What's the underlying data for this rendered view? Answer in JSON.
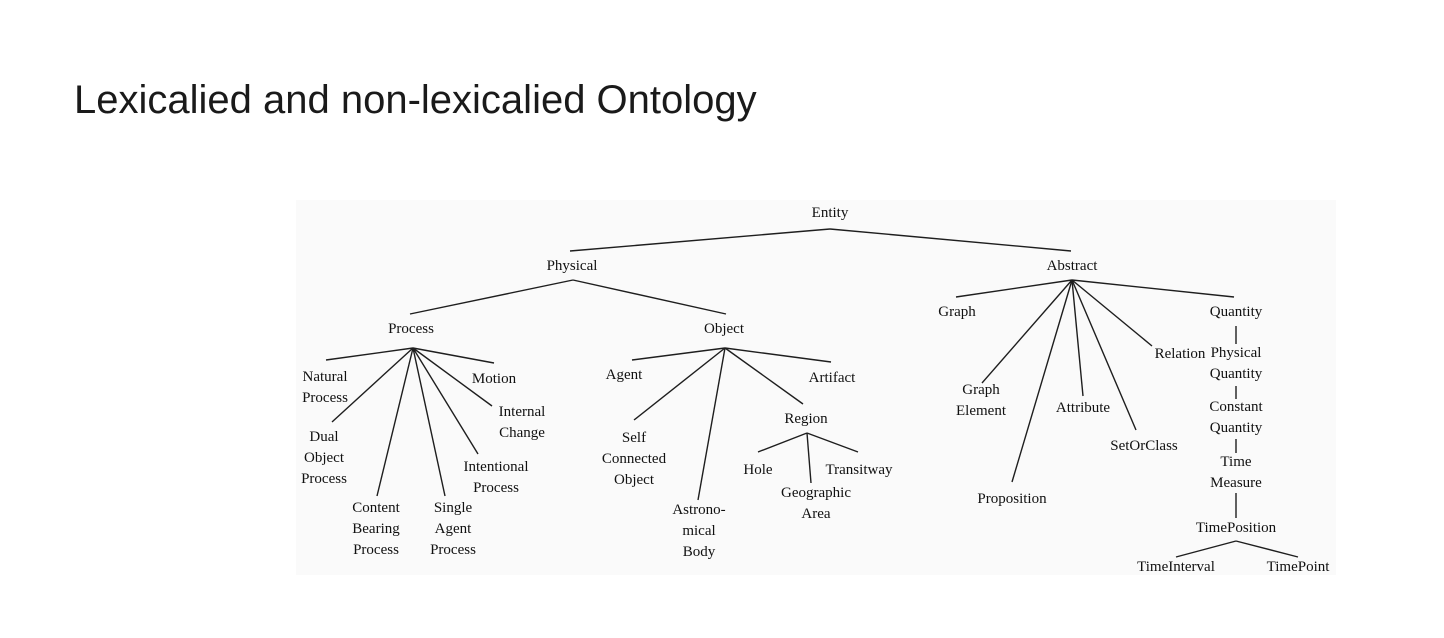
{
  "slide": {
    "title": "Lexicalied and non-lexicalied Ontology"
  },
  "ontology": {
    "entity": "Entity",
    "physical": "Physical",
    "abstract": "Abstract",
    "process": "Process",
    "object": "Object",
    "natural_process": "Natural\nProcess",
    "motion": "Motion",
    "internal_change": "Internal\nChange",
    "dual_object_process": "Dual\nObject\nProcess",
    "intentional_process": "Intentional\nProcess",
    "content_bearing_process": "Content\nBearing\nProcess",
    "single_agent_process": "Single\nAgent\nProcess",
    "agent": "Agent",
    "artifact": "Artifact",
    "region": "Region",
    "self_connected_object": "Self\nConnected\nObject",
    "astronomical_body": "Astrono-\nmical\nBody",
    "hole": "Hole",
    "transitway": "Transitway",
    "geographic_area": "Geographic\nArea",
    "graph": "Graph",
    "graph_element": "Graph\nElement",
    "proposition": "Proposition",
    "attribute": "Attribute",
    "relation": "Relation",
    "set_or_class": "SetOrClass",
    "quantity": "Quantity",
    "physical_quantity": "Physical\nQuantity",
    "constant_quantity": "Constant\nQuantity",
    "time_measure": "Time\nMeasure",
    "time_position": "TimePosition",
    "time_interval": "TimeInterval",
    "time_point": "TimePoint"
  }
}
